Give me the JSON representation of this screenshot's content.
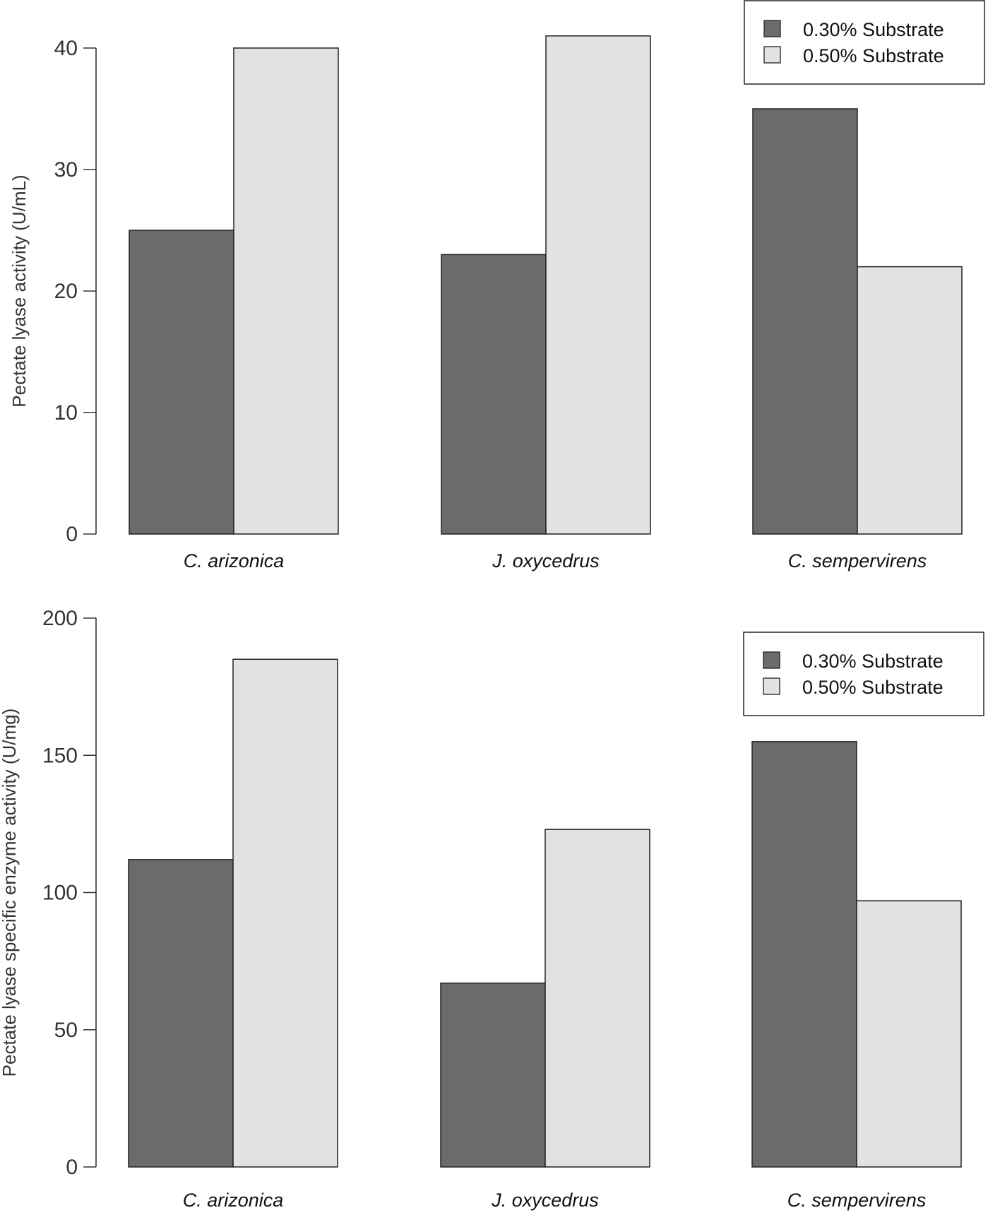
{
  "chart_data": [
    {
      "type": "bar",
      "categories": [
        "C. arizonica",
        "J. oxycedrus",
        "C. sempervirens"
      ],
      "series": [
        {
          "name": "0.30% Substrate",
          "color": "#6b6b6a",
          "values": [
            25,
            23,
            35
          ]
        },
        {
          "name": "0.50% Substrate",
          "color": "#e2e2e2",
          "values": [
            40,
            41,
            22
          ]
        }
      ],
      "title": "",
      "xlabel": "",
      "ylabel": "Pectate lyase activity (U/mL)",
      "ylim": [
        0,
        40
      ],
      "yticks": [
        0,
        10,
        20,
        30,
        40
      ],
      "legend_position": "top-right"
    },
    {
      "type": "bar",
      "categories": [
        "C. arizonica",
        "J. oxycedrus",
        "C. sempervirens"
      ],
      "series": [
        {
          "name": "0.30% Substrate",
          "color": "#6b6b6a",
          "values": [
            112,
            67,
            155
          ]
        },
        {
          "name": "0.50% Substrate",
          "color": "#e2e2e2",
          "values": [
            185,
            123,
            97
          ]
        }
      ],
      "title": "",
      "xlabel": "",
      "ylabel": "Pectate lyase specific enzyme activity (U/mg)",
      "ylim": [
        0,
        200
      ],
      "yticks": [
        0,
        50,
        100,
        150,
        200
      ],
      "legend_position": "top-right"
    }
  ]
}
